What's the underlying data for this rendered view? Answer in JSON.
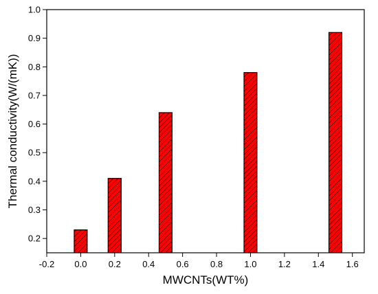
{
  "chart_data": {
    "type": "bar",
    "x_label": "MWCNTs(WT%)",
    "y_label": "Thermal conductivity(W/(mK))",
    "x": [
      0,
      0.2,
      0.5,
      1.0,
      1.5
    ],
    "values": [
      0.23,
      0.41,
      0.64,
      0.78,
      0.92
    ],
    "color": "#ff0000",
    "xlim": [
      -0.2,
      1.67
    ],
    "ylim": [
      0.15,
      1.0
    ],
    "xticks": [
      -0.2,
      {
        "value": 0,
        "label": "0.0"
      },
      0.2,
      0.4,
      0.6,
      0.8,
      {
        "value": 1,
        "label": "1.0"
      },
      1.2,
      1.4,
      1.6
    ],
    "yticks": [
      0.2,
      0.3,
      0.4,
      0.5,
      0.6,
      0.7,
      0.8,
      0.9,
      {
        "value": 1,
        "label": "1.0"
      }
    ]
  }
}
